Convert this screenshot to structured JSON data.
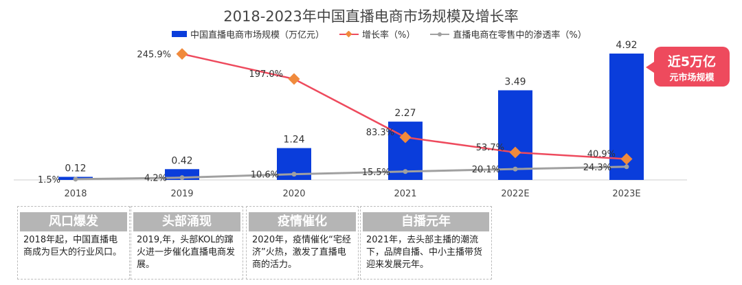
{
  "chart_data": {
    "type": "bar+line",
    "title": "2018-2023年中国直播电商市场规模及增长率",
    "categories": [
      "2018",
      "2019",
      "2020",
      "2021",
      "2022E",
      "2023E"
    ],
    "series": [
      {
        "name": "中国直播电商市场规模（万亿元）",
        "type": "bar",
        "color": "#0a3ddb",
        "values": [
          0.12,
          0.42,
          1.24,
          2.27,
          3.49,
          4.92
        ],
        "labels": [
          "0.12",
          "0.42",
          "1.24",
          "2.27",
          "3.49",
          "4.92"
        ]
      },
      {
        "name": "增长率（%）",
        "type": "line",
        "color": "#ee4a5d",
        "marker_color": "#f08a3c",
        "values": [
          null,
          245.9,
          197.0,
          83.3,
          53.7,
          40.9
        ],
        "labels": [
          "",
          "245.9%",
          "197.0%",
          "83.3%",
          "53.7%",
          "40.9%"
        ]
      },
      {
        "name": "直播电商在零售中的渗透率（%）",
        "type": "line",
        "color": "#a0a0a0",
        "values": [
          1.5,
          4.2,
          10.6,
          15.5,
          20.1,
          24.3
        ],
        "labels": [
          "1.5%",
          "4.2%",
          "10.6%",
          "15.5%",
          "20.1%",
          "24.3%"
        ]
      }
    ]
  },
  "callout": {
    "line1": "近5万亿",
    "line2": "元市场规模"
  },
  "cards": [
    {
      "title": "风口爆发",
      "text": "2018年起，中国直播电商成为巨大的行业风口。"
    },
    {
      "title": "头部涌现",
      "text": "2019,年，头部KOL的蹿火进一步催化直播电商发展。"
    },
    {
      "title": "疫情催化",
      "text": "2020年，疫情催化“宅经济”火热，激发了直播电商的活力。"
    },
    {
      "title": "自播元年",
      "text": "2021年，去头部主播的潮流下，品牌自播、中小主播带货迎来发展元年。"
    }
  ]
}
